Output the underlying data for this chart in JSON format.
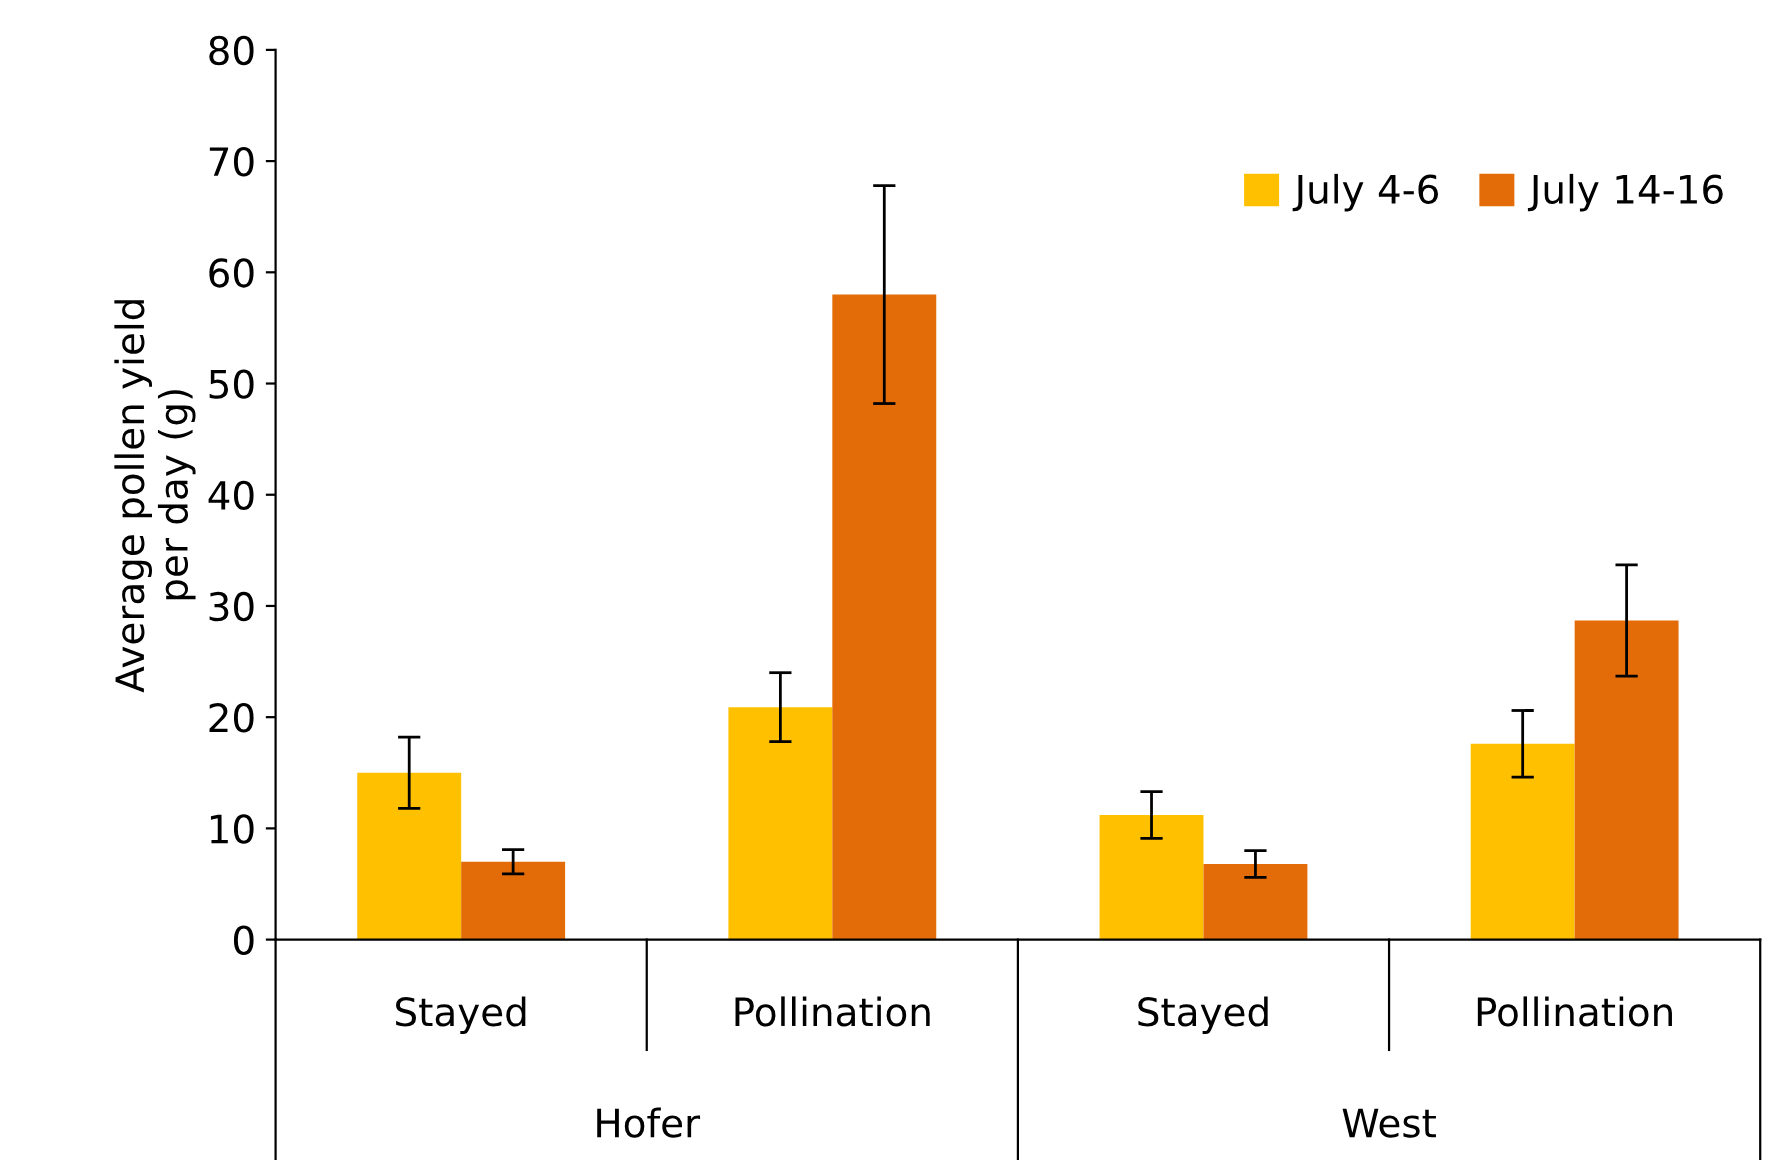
{
  "chart_data": {
    "type": "bar",
    "ylabel": "Average pollen yield\nper day (g)",
    "categories": [
      "Stayed",
      "Pollination",
      "Stayed",
      "Pollination"
    ],
    "annotations": [
      "Hofer",
      "West"
    ],
    "series": [
      {
        "name": "July 4-6",
        "color": "#ffc000",
        "values": [
          15.0,
          20.9,
          11.2,
          17.6
        ],
        "errors": [
          3.2,
          3.1,
          2.1,
          3.0
        ]
      },
      {
        "name": "July 14-16",
        "color": "#e36c09",
        "values": [
          7.0,
          58.0,
          6.8,
          28.7
        ],
        "errors": [
          1.1,
          9.8,
          1.2,
          5.0
        ]
      }
    ],
    "ylim": [
      0,
      80
    ],
    "yticks": [
      0,
      10,
      20,
      30,
      40,
      50,
      60,
      70,
      80
    ],
    "grid": false,
    "legend": "top right"
  }
}
